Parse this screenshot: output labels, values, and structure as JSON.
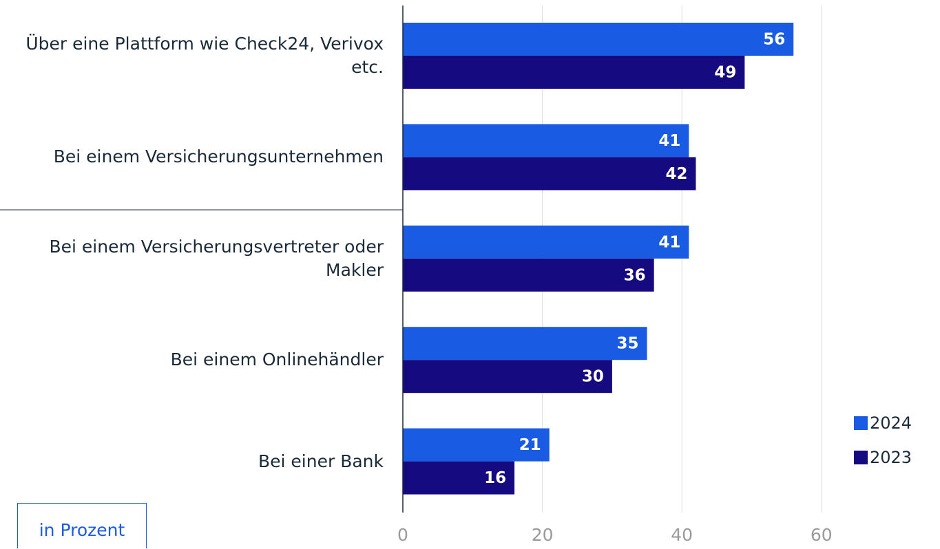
{
  "chart_data": {
    "type": "hbar",
    "categories": [
      "Über eine Plattform wie Check24, Verivox etc.",
      "Bei einem Versicherungsunternehmen",
      "Bei einem Versicherungsvertreter oder Makler",
      "Bei einem Onlinehändler",
      "Bei einer Bank"
    ],
    "series": [
      {
        "name": "2024",
        "color": "#1a5be3",
        "values": [
          56,
          41,
          41,
          35,
          21
        ]
      },
      {
        "name": "2023",
        "color": "#150a80",
        "values": [
          49,
          42,
          36,
          30,
          16
        ]
      }
    ],
    "xlim": [
      0,
      65
    ],
    "xticks": [
      0,
      20,
      40,
      60
    ],
    "grid": true,
    "legend": "lower right",
    "annotation": "in Prozent"
  }
}
